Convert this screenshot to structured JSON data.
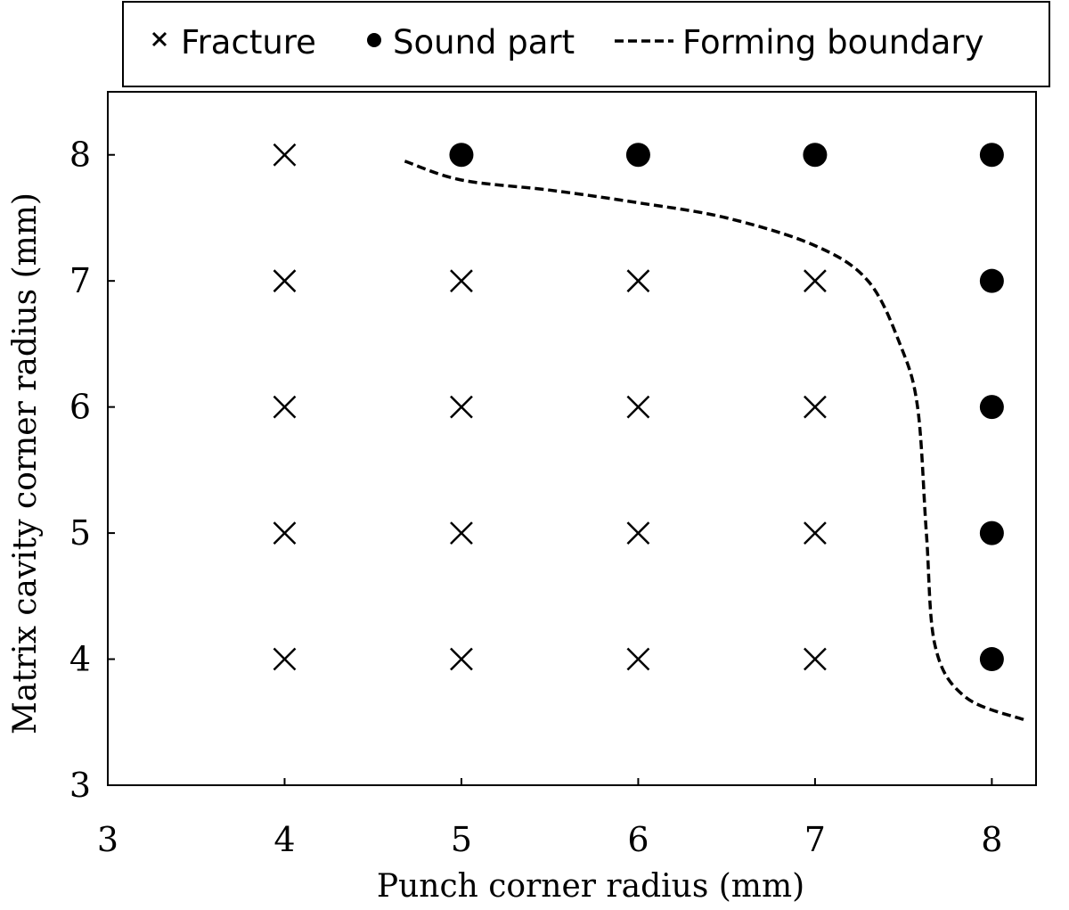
{
  "chart_data": {
    "type": "scatter",
    "xlabel": "Punch corner radius (mm)",
    "ylabel": "Matrix cavity corner radius (mm)",
    "xlim": [
      3,
      8.25
    ],
    "ylim": [
      3,
      8.5
    ],
    "x_ticks": [
      "3",
      "4",
      "5",
      "6",
      "7",
      "8"
    ],
    "y_ticks": [
      "3",
      "4",
      "5",
      "6",
      "7",
      "8"
    ],
    "grid": false,
    "legend_position": "top",
    "legend": [
      {
        "name": "Fracture",
        "marker": "x"
      },
      {
        "name": "Sound part",
        "marker": "circle"
      },
      {
        "name": "Forming boundary",
        "marker": "dashed-line"
      }
    ],
    "series": [
      {
        "name": "Fracture",
        "marker": "x",
        "points": [
          {
            "x": 4,
            "y": 8
          },
          {
            "x": 4,
            "y": 7
          },
          {
            "x": 5,
            "y": 7
          },
          {
            "x": 6,
            "y": 7
          },
          {
            "x": 7,
            "y": 7
          },
          {
            "x": 4,
            "y": 6
          },
          {
            "x": 5,
            "y": 6
          },
          {
            "x": 6,
            "y": 6
          },
          {
            "x": 7,
            "y": 6
          },
          {
            "x": 4,
            "y": 5
          },
          {
            "x": 5,
            "y": 5
          },
          {
            "x": 6,
            "y": 5
          },
          {
            "x": 7,
            "y": 5
          },
          {
            "x": 4,
            "y": 4
          },
          {
            "x": 5,
            "y": 4
          },
          {
            "x": 6,
            "y": 4
          },
          {
            "x": 7,
            "y": 4
          }
        ]
      },
      {
        "name": "Sound part",
        "marker": "circle",
        "points": [
          {
            "x": 5,
            "y": 8
          },
          {
            "x": 6,
            "y": 8
          },
          {
            "x": 7,
            "y": 8
          },
          {
            "x": 8,
            "y": 8
          },
          {
            "x": 8,
            "y": 7
          },
          {
            "x": 8,
            "y": 6
          },
          {
            "x": 8,
            "y": 5
          },
          {
            "x": 8,
            "y": 4
          }
        ]
      },
      {
        "name": "Forming boundary",
        "style": "dashed",
        "points": [
          {
            "x": 4.68,
            "y": 7.95
          },
          {
            "x": 5.0,
            "y": 7.8
          },
          {
            "x": 5.5,
            "y": 7.72
          },
          {
            "x": 6.0,
            "y": 7.62
          },
          {
            "x": 6.5,
            "y": 7.5
          },
          {
            "x": 7.0,
            "y": 7.28
          },
          {
            "x": 7.3,
            "y": 7.0
          },
          {
            "x": 7.48,
            "y": 6.5
          },
          {
            "x": 7.58,
            "y": 6.0
          },
          {
            "x": 7.63,
            "y": 5.0
          },
          {
            "x": 7.68,
            "y": 4.1
          },
          {
            "x": 7.85,
            "y": 3.7
          },
          {
            "x": 8.18,
            "y": 3.52
          }
        ]
      }
    ]
  }
}
